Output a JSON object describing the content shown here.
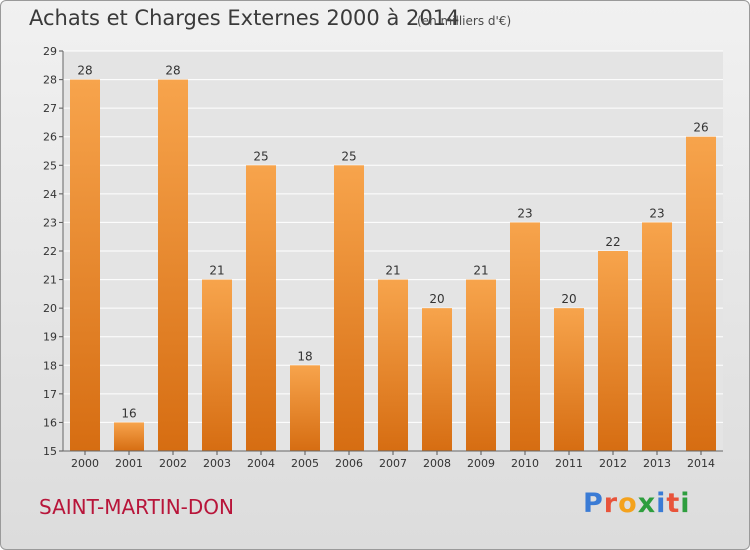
{
  "chart_data": {
    "type": "bar",
    "title": "Achats et Charges Externes 2000 à 2014",
    "subtitle": "(en milliers d'€)",
    "categories": [
      "2000",
      "2001",
      "2002",
      "2003",
      "2004",
      "2005",
      "2006",
      "2007",
      "2008",
      "2009",
      "2010",
      "2011",
      "2012",
      "2013",
      "2014"
    ],
    "values": [
      28,
      16,
      28,
      21,
      25,
      18,
      25,
      21,
      20,
      21,
      23,
      20,
      22,
      23,
      26
    ],
    "ylim": [
      15,
      29
    ],
    "yticks": [
      15,
      16,
      17,
      18,
      19,
      20,
      21,
      22,
      23,
      24,
      25,
      26,
      27,
      28,
      29
    ],
    "grid": true,
    "bar_color": "#f0923a"
  },
  "location": "SAINT-MARTIN-DON",
  "logo": {
    "letters": [
      "P",
      "r",
      "o",
      "x",
      "i",
      "t",
      "i"
    ],
    "colors": [
      "#3a7bd5",
      "#e8533a",
      "#f4a21d",
      "#2e9e3e",
      "#3a7bd5",
      "#e8533a",
      "#2e9e3e"
    ]
  }
}
